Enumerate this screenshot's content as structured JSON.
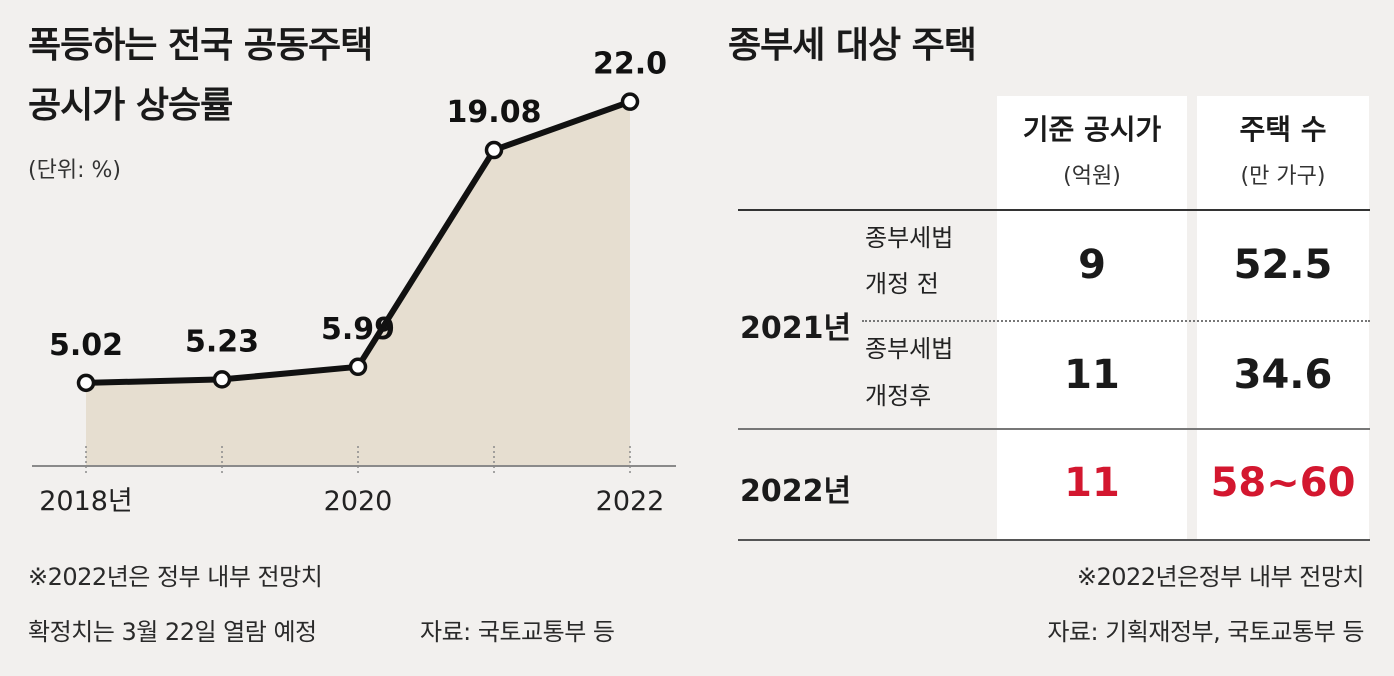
{
  "left": {
    "title_line1": "폭등하는 전국 공동주택",
    "title_line2": "공시가 상승률",
    "unit": "(단위: %)",
    "note1": "※2022년은 정부 내부 전망치",
    "note2": "확정치는 3월 22일 열람 예정",
    "source": "자료: 국토교통부 등"
  },
  "chart_data": {
    "type": "area",
    "x": [
      2018,
      2019,
      2020,
      2021,
      2022
    ],
    "values": [
      5.02,
      5.23,
      5.99,
      19.08,
      22.0
    ],
    "value_labels": [
      "5.02",
      "5.23",
      "5.99",
      "19.08",
      "22.0"
    ],
    "tick_labels": [
      "2018년",
      "",
      "2020",
      "",
      "2022"
    ],
    "ylim": [
      0,
      25
    ],
    "grid": false,
    "colors": {
      "fill": "#e6ded0",
      "line": "#111111",
      "marker_fill": "#ffffff"
    }
  },
  "right": {
    "title": "종부세 대상 주택",
    "col1_header": "기준 공시가",
    "col1_sub": "(억원)",
    "col2_header": "주택 수",
    "col2_sub": "(만 가구)",
    "year_2021": "2021년",
    "year_2022": "2022년",
    "row1_label_line1": "종부세법",
    "row1_label_line2": "개정 전",
    "row2_label_line1": "종부세법",
    "row2_label_line2": "개정후",
    "row1_price": "9",
    "row1_count": "52.5",
    "row2_price": "11",
    "row2_count": "34.6",
    "row3_price": "11",
    "row3_count": "58~60",
    "note": "※2022년은정부 내부 전망치",
    "source": "자료: 기획재정부, 국토교통부 등",
    "colors": {
      "highlight": "#d3172f"
    }
  }
}
